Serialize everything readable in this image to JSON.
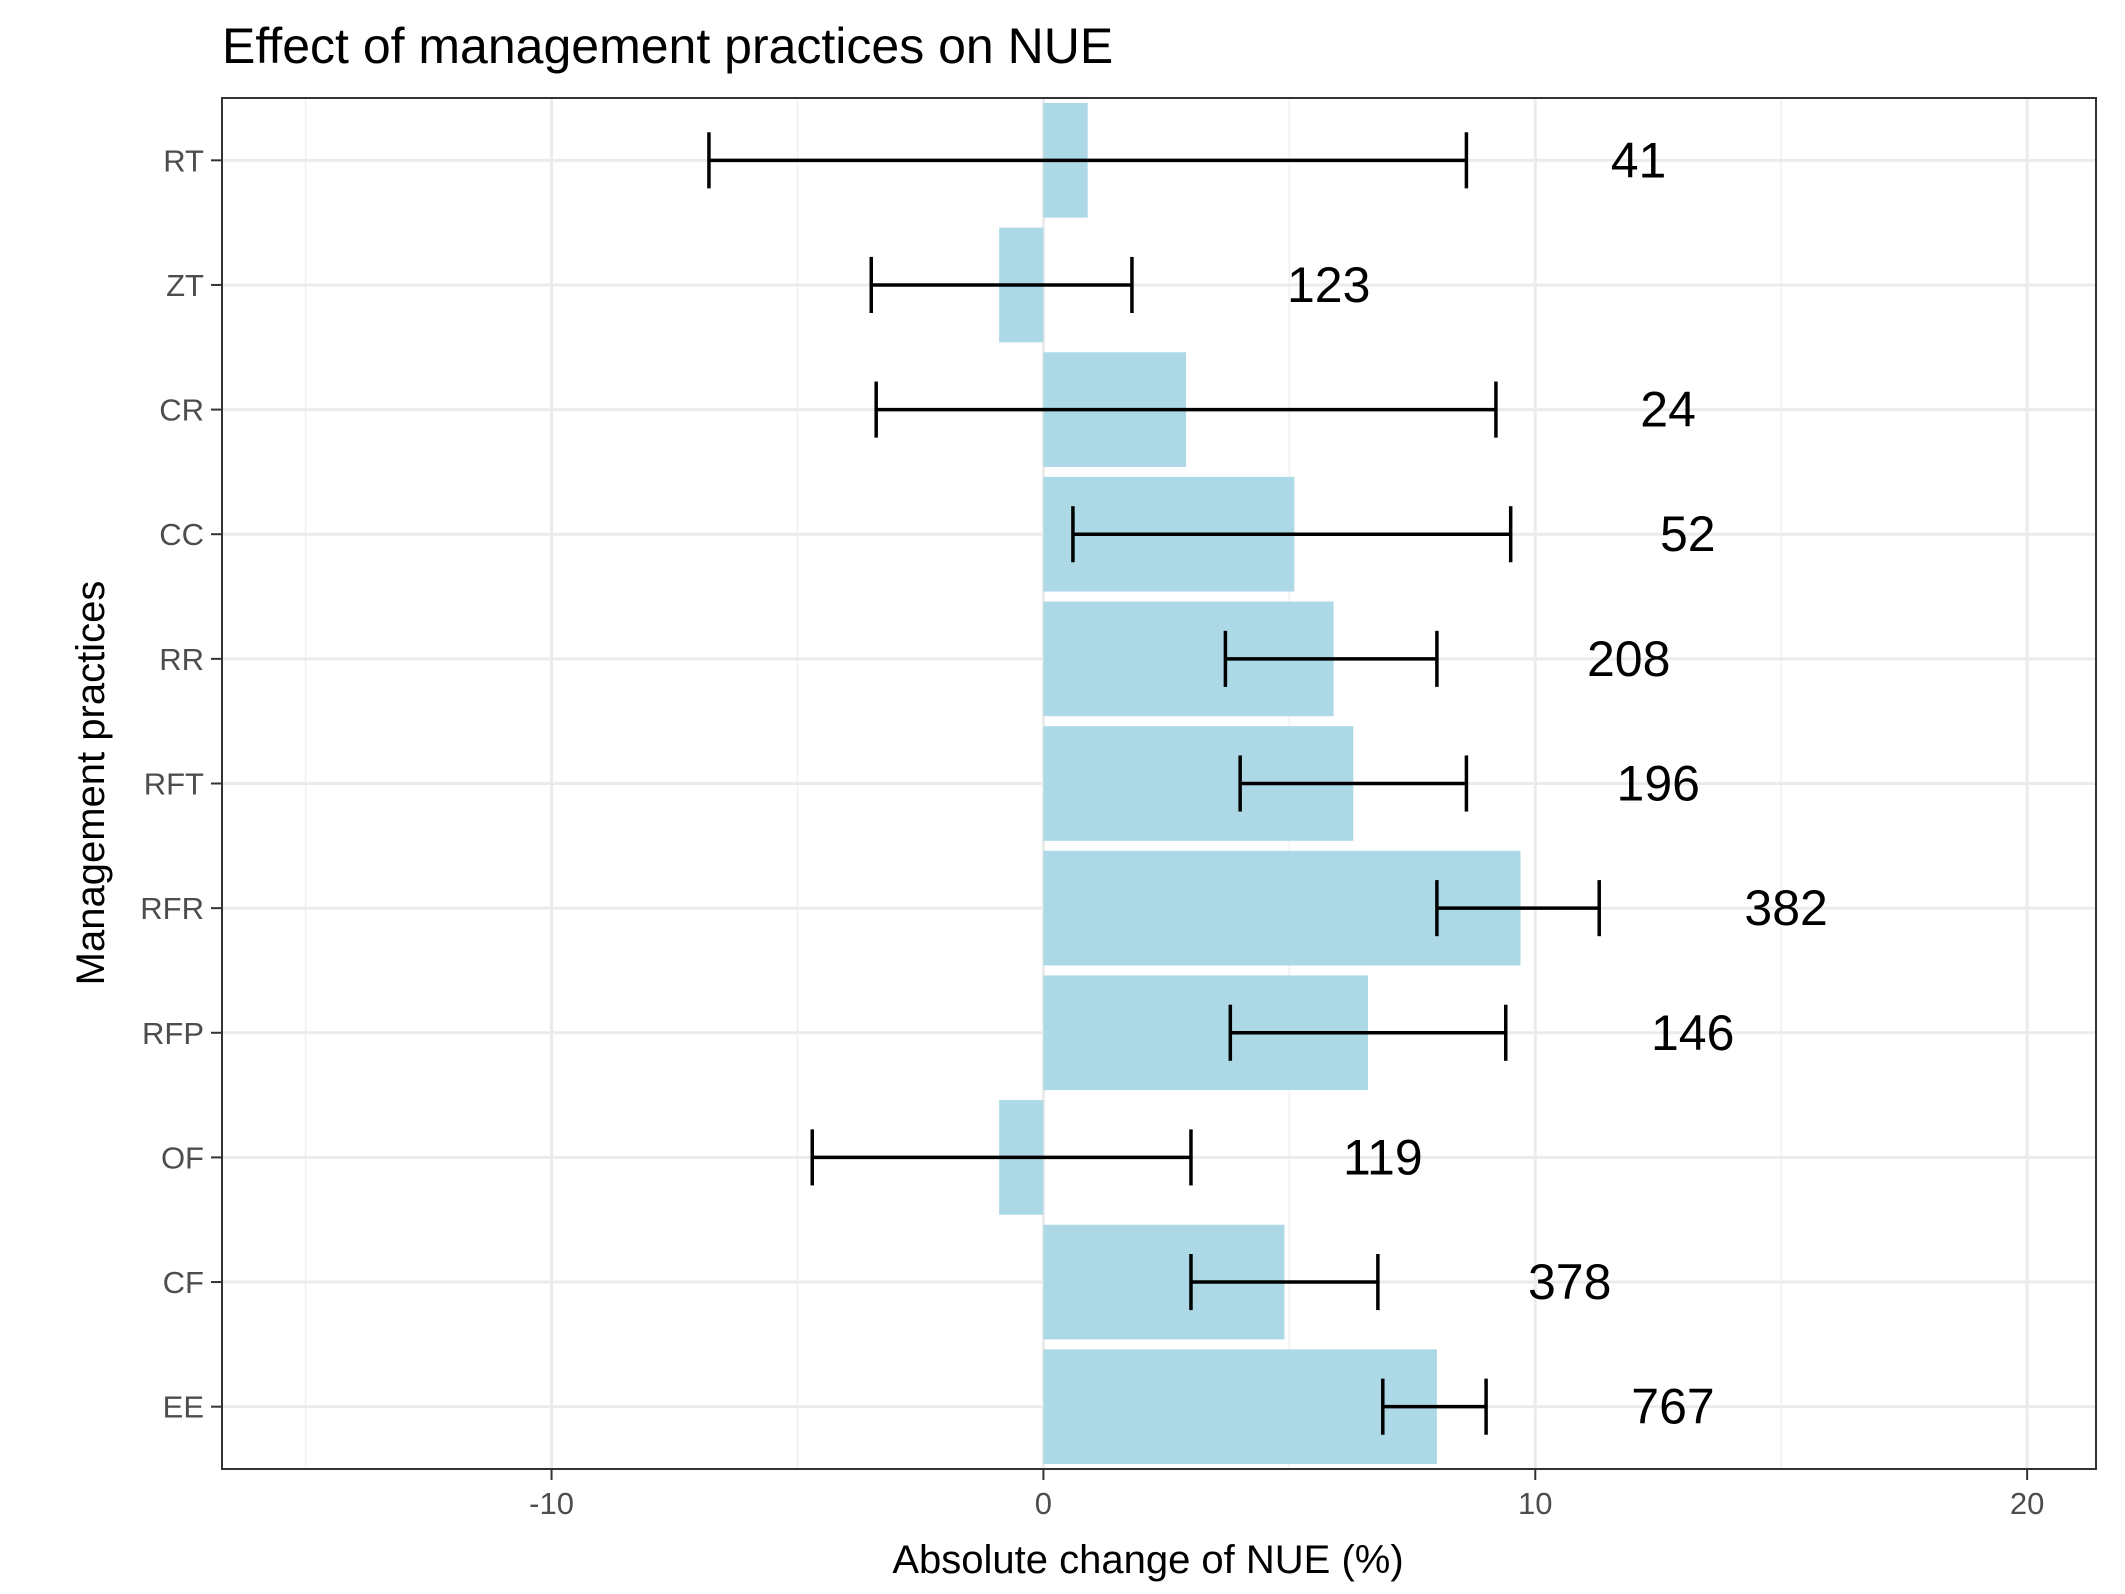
{
  "chart_data": {
    "type": "bar",
    "orientation": "horizontal",
    "title": "Effect of management practices on NUE",
    "xlabel": "Absolute change of NUE (%)",
    "ylabel": "Management practices",
    "xlim": [
      -16.7,
      21.4
    ],
    "x_ticks": [
      -10,
      0,
      10,
      20
    ],
    "x_minor_grid": [
      -15,
      -5,
      5,
      15
    ],
    "grid": true,
    "theme": "bw",
    "bar_color": "#add8e6",
    "errorbar_color": "#000000",
    "categories": [
      "RT",
      "ZT",
      "CR",
      "CC",
      "RR",
      "RFT",
      "RFR",
      "RFP",
      "OF",
      "CF",
      "EE"
    ],
    "values": [
      0.9,
      -0.9,
      2.9,
      5.1,
      5.9,
      6.3,
      9.7,
      6.6,
      -0.9,
      4.9,
      8.0
    ],
    "ci_low": [
      -6.8,
      -3.5,
      -3.4,
      0.6,
      3.7,
      4.0,
      8.0,
      3.8,
      -4.7,
      3.0,
      6.9
    ],
    "ci_high": [
      8.6,
      1.8,
      9.2,
      9.5,
      8.0,
      8.6,
      11.3,
      9.4,
      3.0,
      6.8,
      9.0
    ],
    "counts": [
      "41",
      "123",
      "24",
      "52",
      "208",
      "196",
      "382",
      "146",
      "119",
      "378",
      "767"
    ],
    "count_x": [
      12.1,
      5.8,
      12.7,
      13.1,
      11.9,
      12.5,
      15.1,
      13.2,
      6.9,
      10.7,
      12.8
    ]
  }
}
